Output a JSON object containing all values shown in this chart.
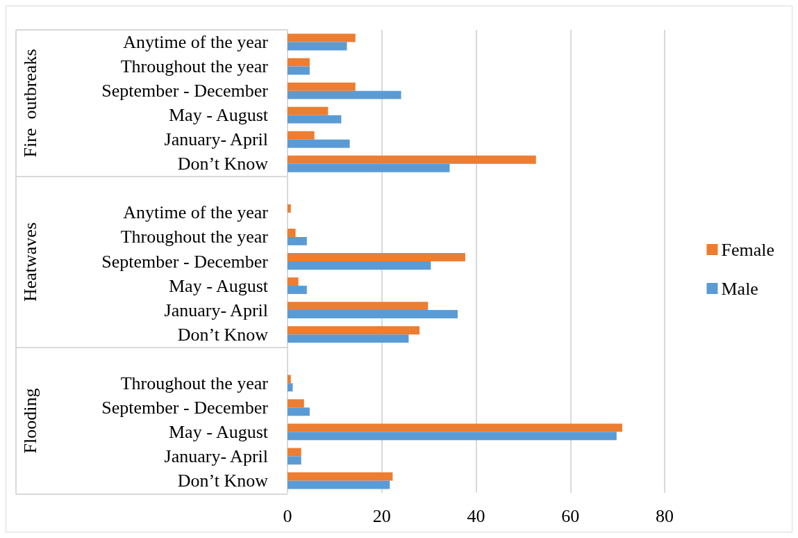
{
  "chart_data": {
    "type": "bar",
    "orientation": "horizontal",
    "categories": [
      "Anytime of the year",
      "Throughout the year",
      "September - December",
      "May - August",
      "January- April",
      "Don’t Know",
      null,
      "Anytime of the year",
      "Throughout the year",
      "September - December",
      "May - August",
      "January- April",
      "Don’t Know",
      null,
      "Throughout the year",
      "September - December",
      "May - August",
      "January- April",
      "Don’t Know"
    ],
    "series": [
      {
        "name": "Female",
        "color": "#ed7d31",
        "values": [
          14.4,
          4.7,
          14.4,
          8.6,
          5.7,
          52.7,
          null,
          0.7,
          1.7,
          37.7,
          2.3,
          29.8,
          28.0,
          null,
          0.7,
          3.5,
          71.0,
          2.9,
          22.3
        ]
      },
      {
        "name": "Male",
        "color": "#5b9bd5",
        "values": [
          12.6,
          4.7,
          24.1,
          11.4,
          13.2,
          34.4,
          null,
          0,
          4.1,
          30.4,
          4.1,
          36.1,
          25.7,
          null,
          1.1,
          4.7,
          69.8,
          2.9,
          21.7
        ]
      }
    ],
    "annotations": [
      "Fire  outbreaks",
      "Heatwaves",
      "Flooding"
    ],
    "xlim": [
      0,
      80
    ],
    "xticks": [
      0,
      20,
      40,
      60,
      80
    ],
    "grid": "x",
    "legend": "right"
  }
}
